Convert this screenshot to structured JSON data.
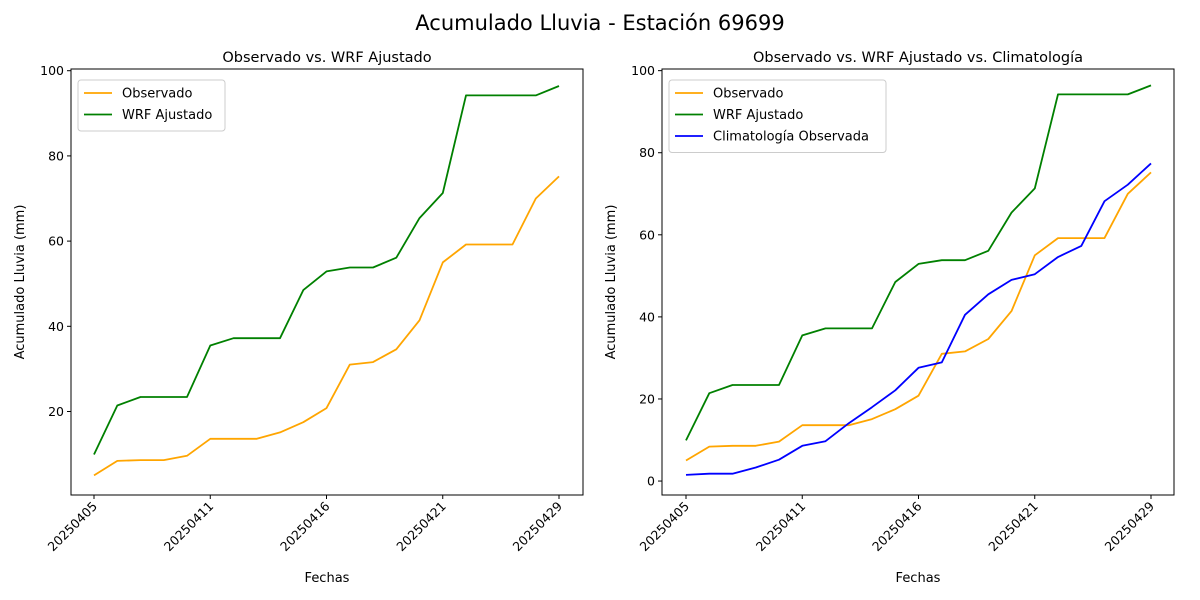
{
  "suptitle": "Acumulado Lluvia - Estación 69699",
  "colors": {
    "observado": "#ffa500",
    "wrf": "#008000",
    "climatologia": "#0000ff"
  },
  "chart_data": [
    {
      "type": "line",
      "title": "Observado vs. WRF Ajustado",
      "xlabel": "Fechas",
      "ylabel": "Acumulado Lluvia (mm)",
      "x_tick_labels": [
        "20250405",
        "20250411",
        "20250416",
        "20250421",
        "20250429"
      ],
      "x_tick_index": [
        0,
        5,
        10,
        15,
        20
      ],
      "ylim": [
        0.4,
        100.4
      ],
      "yticks": [
        20,
        40,
        60,
        80,
        100
      ],
      "legend_position": "upper-left",
      "series": [
        {
          "name": "Observado",
          "color_key": "observado",
          "values": [
            5.0,
            8.4,
            8.6,
            8.6,
            9.6,
            13.6,
            13.6,
            13.6,
            15.1,
            17.5,
            20.8,
            31.0,
            31.6,
            34.6,
            41.4,
            55.0,
            59.2,
            59.2,
            59.2,
            70.0,
            75.2
          ]
        },
        {
          "name": "WRF Ajustado",
          "color_key": "wrf",
          "values": [
            9.9,
            21.4,
            23.4,
            23.4,
            23.4,
            35.5,
            37.2,
            37.2,
            37.2,
            48.5,
            52.9,
            53.8,
            53.8,
            56.1,
            65.4,
            71.3,
            94.2,
            94.2,
            94.2,
            94.2,
            96.4
          ]
        }
      ]
    },
    {
      "type": "line",
      "title": "Observado vs. WRF Ajustado vs. Climatología",
      "xlabel": "Fechas",
      "ylabel": "Acumulado Lluvia (mm)",
      "x_tick_labels": [
        "20250405",
        "20250411",
        "20250416",
        "20250421",
        "20250429"
      ],
      "x_tick_index": [
        0,
        5,
        10,
        15,
        20
      ],
      "ylim": [
        -3.4,
        100.4
      ],
      "yticks": [
        0,
        20,
        40,
        60,
        80,
        100
      ],
      "legend_position": "upper-left",
      "series": [
        {
          "name": "Observado",
          "color_key": "observado",
          "values": [
            5.0,
            8.4,
            8.6,
            8.6,
            9.6,
            13.6,
            13.6,
            13.6,
            15.1,
            17.5,
            20.8,
            31.0,
            31.6,
            34.6,
            41.4,
            55.0,
            59.2,
            59.2,
            59.2,
            70.0,
            75.2
          ]
        },
        {
          "name": "WRF Ajustado",
          "color_key": "wrf",
          "values": [
            9.9,
            21.4,
            23.4,
            23.4,
            23.4,
            35.5,
            37.2,
            37.2,
            37.2,
            48.5,
            52.9,
            53.8,
            53.8,
            56.1,
            65.4,
            71.3,
            94.2,
            94.2,
            94.2,
            94.2,
            96.4
          ]
        },
        {
          "name": "Climatología Observada",
          "color_key": "climatologia",
          "values": [
            1.5,
            1.8,
            1.8,
            3.3,
            5.2,
            8.6,
            9.7,
            14.1,
            18.0,
            22.1,
            27.6,
            28.9,
            40.5,
            45.5,
            49.0,
            50.4,
            54.6,
            57.3,
            68.2,
            72.2,
            77.4
          ]
        }
      ]
    }
  ]
}
